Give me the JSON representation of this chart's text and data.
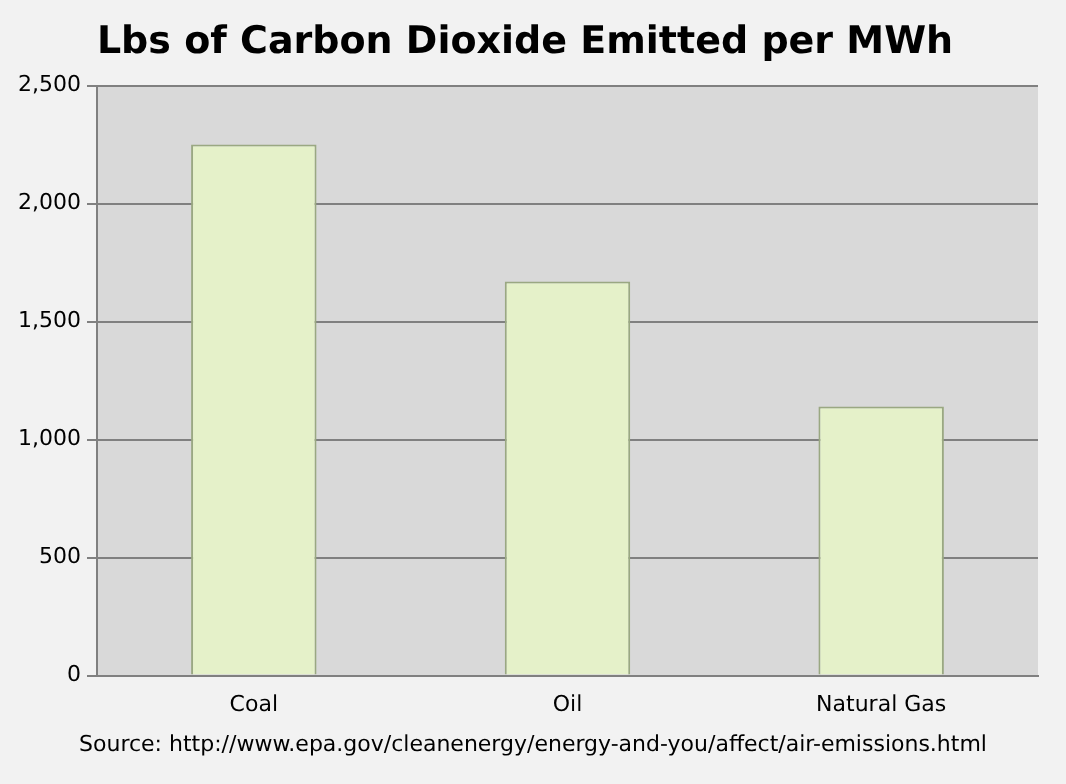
{
  "chart_data": {
    "type": "bar",
    "title": "Lbs of Carbon Dioxide Emitted per MWh",
    "categories": [
      "Coal",
      "Oil",
      "Natural Gas"
    ],
    "values": [
      2250,
      1670,
      1140
    ],
    "color": "#e5f1c9",
    "ylim": [
      0,
      2500
    ],
    "yticks": [
      {
        "value": 0,
        "label": "0"
      },
      {
        "value": 500,
        "label": "500"
      },
      {
        "value": 1000,
        "label": "1,000"
      },
      {
        "value": 1500,
        "label": "1,500"
      },
      {
        "value": 2000,
        "label": "2,000"
      },
      {
        "value": 2500,
        "label": "2,500"
      }
    ],
    "grid": "y",
    "legend": false,
    "annotations": [
      "Source: http://www.epa.gov/cleanenergy/energy-and-you/affect/air-emissions.html"
    ]
  }
}
